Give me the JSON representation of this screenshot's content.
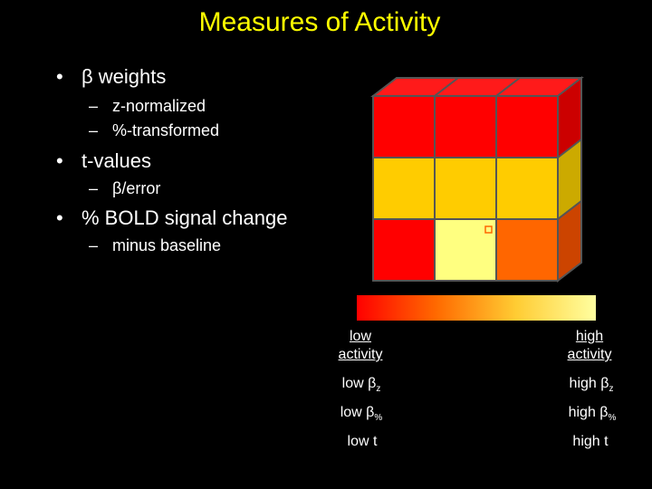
{
  "slide": {
    "title": "Measures of Activity",
    "bullets": [
      {
        "text": "β weights",
        "subs": [
          "z-normalized",
          "%-transformed"
        ]
      },
      {
        "text": "t-values",
        "subs": [
          "β/error"
        ]
      },
      {
        "text": "% BOLD signal change",
        "subs": [
          "minus baseline"
        ]
      }
    ],
    "bullet_glyph": "•",
    "sub_glyph": "–"
  },
  "legend": {
    "low_activity_line1": "low",
    "low_activity_line2": "activity",
    "high_activity_line1": "high",
    "high_activity_line2": "activity",
    "low_beta_z": "low β",
    "low_beta_z_sub": "z",
    "high_beta_z": "high β",
    "high_beta_z_sub": "z",
    "low_beta_pct": "low β",
    "low_beta_pct_sub": "%",
    "high_beta_pct": "high β",
    "high_beta_pct_sub": "%",
    "low_t": "low t",
    "high_t": "high t",
    "gradient_colors": [
      "#ff0000",
      "#ff6a00",
      "#ffcc33",
      "#ffffa0"
    ]
  },
  "cube": {
    "front_colors": [
      [
        "#ff0000",
        "#ff0000",
        "#ff0000"
      ],
      [
        "#ffcc00",
        "#ffcc00",
        "#ffcc00"
      ],
      [
        "#ff0000",
        "#ffff80",
        "#ff6600"
      ]
    ],
    "side_colors": [
      "#cc0000",
      "#ccaa00",
      "#cc4400"
    ],
    "top_color": "#ff1a1a",
    "edge_color": "#555555"
  }
}
